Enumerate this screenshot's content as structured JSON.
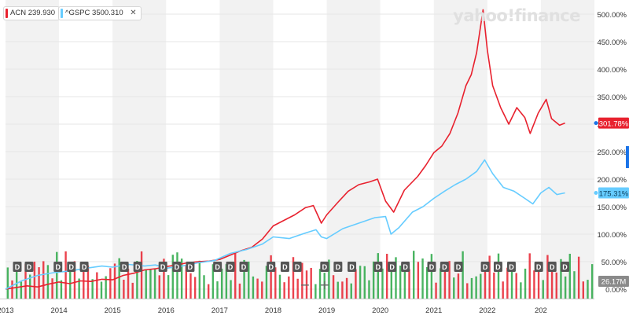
{
  "legend": [
    {
      "symbol": "ACN",
      "value": "239.930",
      "color": "#e8212e"
    },
    {
      "symbol": "^GSPC",
      "value": "3500.310",
      "color": "#66ccff"
    }
  ],
  "close_icon": "close-icon",
  "brand": "yahoo!finance",
  "zoom": {
    "out_label": "−",
    "in_label": "+"
  },
  "colors": {
    "acn": "#e8212e",
    "gspc": "#66ccff",
    "up_volume": "#29a745",
    "down_volume": "#e8212e",
    "shade": "#f2f2f2",
    "grid": "#e6e6e6",
    "dividend_marker": "#555555"
  },
  "chart_data": {
    "type": "line",
    "x_tick_labels": [
      "2013",
      "2014",
      "2015",
      "2016",
      "2017",
      "2018",
      "2019",
      "2020",
      "2021",
      "2022",
      "202"
    ],
    "y_tick_labels": [
      "500.00%",
      "450.00%",
      "400.00%",
      "350.00%",
      "300.00%",
      "250.00%",
      "200.00%",
      "150.00%",
      "100.00%",
      "50.00%",
      "0.00%"
    ],
    "ylim": [
      0,
      510
    ],
    "x_start_year": 2013.0,
    "x_end_year": 2024.0,
    "series": [
      {
        "name": "ACN",
        "last_label": "301.78%",
        "color": "#e8212e",
        "points": [
          [
            2013.0,
            0
          ],
          [
            2013.2,
            3
          ],
          [
            2013.4,
            6
          ],
          [
            2013.6,
            4
          ],
          [
            2013.8,
            9
          ],
          [
            2014.0,
            13
          ],
          [
            2014.2,
            10
          ],
          [
            2014.4,
            15
          ],
          [
            2014.6,
            14
          ],
          [
            2014.8,
            18
          ],
          [
            2015.0,
            17
          ],
          [
            2015.2,
            25
          ],
          [
            2015.4,
            29
          ],
          [
            2015.6,
            35
          ],
          [
            2015.8,
            37
          ],
          [
            2016.0,
            41
          ],
          [
            2016.2,
            44
          ],
          [
            2016.4,
            48
          ],
          [
            2016.6,
            50
          ],
          [
            2016.8,
            51
          ],
          [
            2017.0,
            54
          ],
          [
            2017.2,
            62
          ],
          [
            2017.4,
            70
          ],
          [
            2017.6,
            76
          ],
          [
            2017.8,
            91
          ],
          [
            2018.0,
            115
          ],
          [
            2018.2,
            125
          ],
          [
            2018.4,
            135
          ],
          [
            2018.6,
            148
          ],
          [
            2018.75,
            152
          ],
          [
            2018.9,
            120
          ],
          [
            2019.0,
            135
          ],
          [
            2019.2,
            157
          ],
          [
            2019.4,
            178
          ],
          [
            2019.6,
            190
          ],
          [
            2019.8,
            195
          ],
          [
            2019.95,
            200
          ],
          [
            2020.1,
            160
          ],
          [
            2020.25,
            140
          ],
          [
            2020.45,
            180
          ],
          [
            2020.7,
            205
          ],
          [
            2020.85,
            225
          ],
          [
            2021.0,
            248
          ],
          [
            2021.15,
            260
          ],
          [
            2021.3,
            283
          ],
          [
            2021.45,
            320
          ],
          [
            2021.6,
            370
          ],
          [
            2021.7,
            390
          ],
          [
            2021.8,
            430
          ],
          [
            2021.92,
            508
          ],
          [
            2022.0,
            435
          ],
          [
            2022.1,
            370
          ],
          [
            2022.25,
            330
          ],
          [
            2022.4,
            300
          ],
          [
            2022.55,
            330
          ],
          [
            2022.7,
            312
          ],
          [
            2022.8,
            283
          ],
          [
            2022.95,
            320
          ],
          [
            2023.1,
            345
          ],
          [
            2023.2,
            310
          ],
          [
            2023.35,
            298
          ],
          [
            2023.45,
            302
          ]
        ]
      },
      {
        "name": "^GSPC",
        "last_label": "175.31%",
        "color": "#66ccff",
        "points": [
          [
            2013.0,
            0
          ],
          [
            2013.3,
            15
          ],
          [
            2013.6,
            25
          ],
          [
            2013.9,
            30
          ],
          [
            2014.2,
            33
          ],
          [
            2014.5,
            38
          ],
          [
            2014.8,
            42
          ],
          [
            2015.0,
            40
          ],
          [
            2015.3,
            45
          ],
          [
            2015.6,
            42
          ],
          [
            2015.8,
            44
          ],
          [
            2016.0,
            38
          ],
          [
            2016.3,
            42
          ],
          [
            2016.6,
            48
          ],
          [
            2016.9,
            52
          ],
          [
            2017.2,
            65
          ],
          [
            2017.5,
            72
          ],
          [
            2017.8,
            82
          ],
          [
            2018.0,
            95
          ],
          [
            2018.3,
            92
          ],
          [
            2018.6,
            102
          ],
          [
            2018.8,
            108
          ],
          [
            2018.9,
            95
          ],
          [
            2019.0,
            92
          ],
          [
            2019.3,
            110
          ],
          [
            2019.6,
            120
          ],
          [
            2019.9,
            130
          ],
          [
            2020.1,
            132
          ],
          [
            2020.2,
            100
          ],
          [
            2020.35,
            112
          ],
          [
            2020.6,
            140
          ],
          [
            2020.8,
            150
          ],
          [
            2021.0,
            165
          ],
          [
            2021.2,
            178
          ],
          [
            2021.4,
            190
          ],
          [
            2021.6,
            200
          ],
          [
            2021.8,
            214
          ],
          [
            2021.95,
            235
          ],
          [
            2022.1,
            210
          ],
          [
            2022.3,
            185
          ],
          [
            2022.5,
            178
          ],
          [
            2022.7,
            165
          ],
          [
            2022.85,
            155
          ],
          [
            2023.0,
            175
          ],
          [
            2023.15,
            185
          ],
          [
            2023.3,
            172
          ],
          [
            2023.45,
            175
          ]
        ]
      }
    ],
    "volume": {
      "label": "26.17M",
      "bars_per_year": 12
    },
    "dividend_marker_label": "D",
    "dividend_markers": [
      2013.22,
      2013.44,
      2013.98,
      2014.23,
      2014.47,
      2015.22,
      2015.47,
      2015.94,
      2016.2,
      2016.45,
      2016.96,
      2017.2,
      2017.45,
      2017.96,
      2018.22,
      2018.45,
      2018.96,
      2019.21,
      2019.47,
      2019.96,
      2020.22,
      2020.47,
      2020.96,
      2021.2,
      2021.46,
      2021.96,
      2022.2,
      2022.45,
      2022.96,
      2023.21,
      2023.45
    ],
    "grid": true,
    "shaded_years": [
      2013,
      2015,
      2017,
      2019,
      2021,
      2023
    ]
  }
}
